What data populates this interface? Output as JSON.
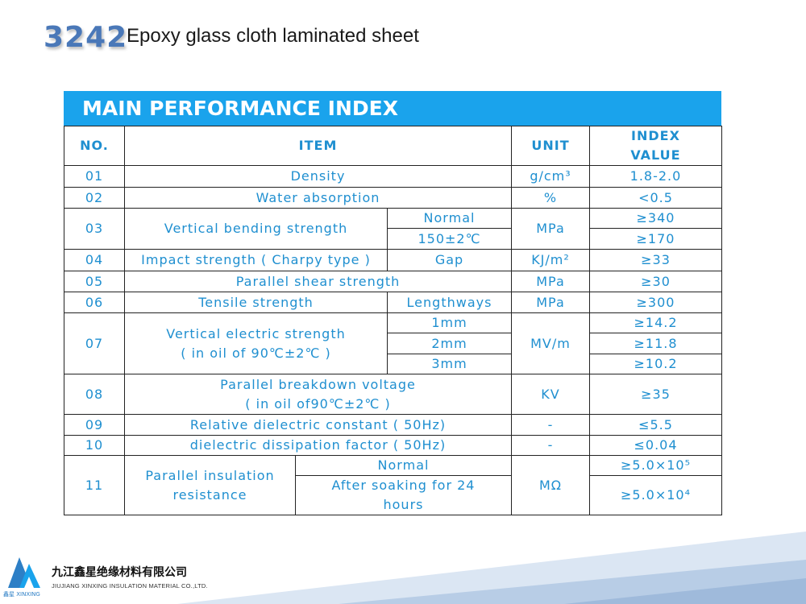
{
  "header": {
    "code": "3242",
    "title": "Epoxy glass cloth laminated sheet"
  },
  "table": {
    "heading": "MAIN PERFORMANCE INDEX",
    "columns": {
      "no": "NO.",
      "item": "ITEM",
      "unit": "UNIT",
      "index_value_line1": "INDEX",
      "index_value_line2": "VALUE"
    },
    "rows": {
      "r01": {
        "no": "01",
        "item": "Density",
        "unit": "g/cm³",
        "value": "1.8-2.0"
      },
      "r02": {
        "no": "02",
        "item": "Water absorption",
        "unit": "%",
        "value": "<0.5"
      },
      "r03": {
        "no": "03",
        "item": "Vertical bending strength",
        "cond1": "Normal",
        "cond2": "150±2℃",
        "unit": "MPa",
        "value1": "≥340",
        "value2": "≥170"
      },
      "r04": {
        "no": "04",
        "item": "Impact strength ( Charpy type )",
        "cond": "Gap",
        "unit": "KJ/m²",
        "value": "≥33"
      },
      "r05": {
        "no": "05",
        "item": "Parallel shear strength",
        "unit": "MPa",
        "value": "≥30"
      },
      "r06": {
        "no": "06",
        "item": "Tensile strength",
        "cond": "Lengthways",
        "unit": "MPa",
        "value": "≥300"
      },
      "r07": {
        "no": "07",
        "item_line1": "Vertical electric strength",
        "item_line2": "( in oil of 90℃±2℃ )",
        "cond1": "1mm",
        "cond2": "2mm",
        "cond3": "3mm",
        "unit": "MV/m",
        "value1": "≥14.2",
        "value2": "≥11.8",
        "value3": "≥10.2"
      },
      "r08": {
        "no": "08",
        "item_line1": "Parallel breakdown voltage",
        "item_line2": "( in oil of90℃±2℃ )",
        "unit": "KV",
        "value": "≥35"
      },
      "r09": {
        "no": "09",
        "item": "Relative dielectric constant ( 50Hz)",
        "unit": "-",
        "value": "≤5.5"
      },
      "r10": {
        "no": "10",
        "item": "dielectric dissipation factor ( 50Hz)",
        "unit": "-",
        "value": "≤0.04"
      },
      "r11": {
        "no": "11",
        "item_line1": "Parallel insulation",
        "item_line2": "resistance",
        "cond1": "Normal",
        "cond2_line1": "After soaking for 24",
        "cond2_line2": "hours",
        "unit": "MΩ",
        "value1": "≥5.0×10⁵",
        "value2": "≥5.0×10⁴"
      }
    }
  },
  "footer": {
    "company_cn": "九江鑫星绝缘材料有限公司",
    "company_en": "JIUJIANG XINXING INSULATION MATERIAL CO.,LTD.",
    "logo_caption": "鑫星 XINXING"
  },
  "colors": {
    "accent": "#1aa3ec",
    "table_text": "#1f8fd0",
    "code_text": "#4a78b8"
  }
}
